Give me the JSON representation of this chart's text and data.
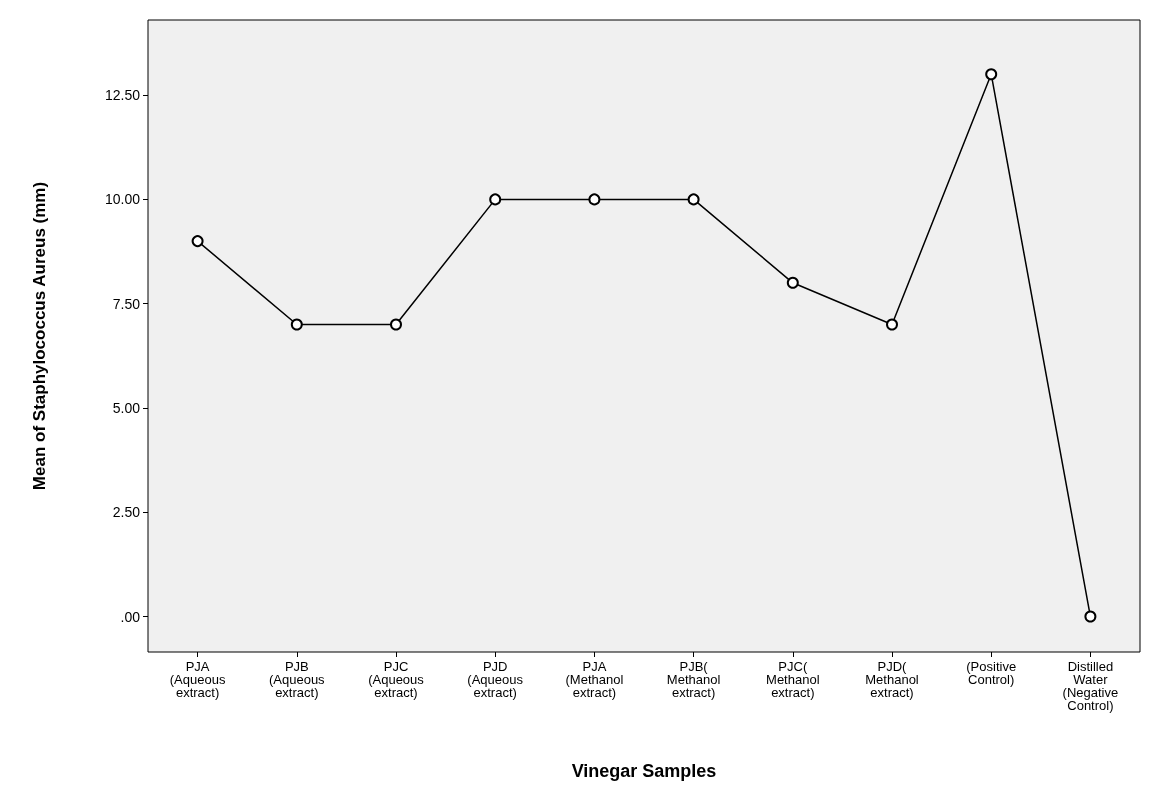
{
  "chart_data": {
    "type": "line",
    "xlabel": "Vinegar Samples",
    "ylabel": "Mean of Staphylococcus Aureus (mm)",
    "categories": [
      "PJA (Aqueous extract)",
      "PJB (Aqueous extract)",
      "PJC (Aqueous extract)",
      "PJD (Aqueous extract)",
      "PJA (Methanol extract)",
      "PJB( Methanol extract)",
      "PJC( Methanol extract)",
      "PJD( Methanol extract)",
      "(Positive Control)",
      "Distilled Water (Negative Control)"
    ],
    "values": [
      9,
      7,
      7,
      10,
      10,
      10,
      8,
      7,
      13,
      0
    ],
    "color": "#000000",
    "marker": "circle",
    "line_style": "solid",
    "grid": false,
    "ylim": [
      -0.85,
      14.3
    ],
    "yticks": [
      {
        "value": 0,
        "label": ".00"
      },
      {
        "value": 2.5,
        "label": "2.50"
      },
      {
        "value": 5,
        "label": "5.00"
      },
      {
        "value": 7.5,
        "label": "7.50"
      },
      {
        "value": 10,
        "label": "10.00"
      },
      {
        "value": 12.5,
        "label": "12.50"
      }
    ]
  }
}
